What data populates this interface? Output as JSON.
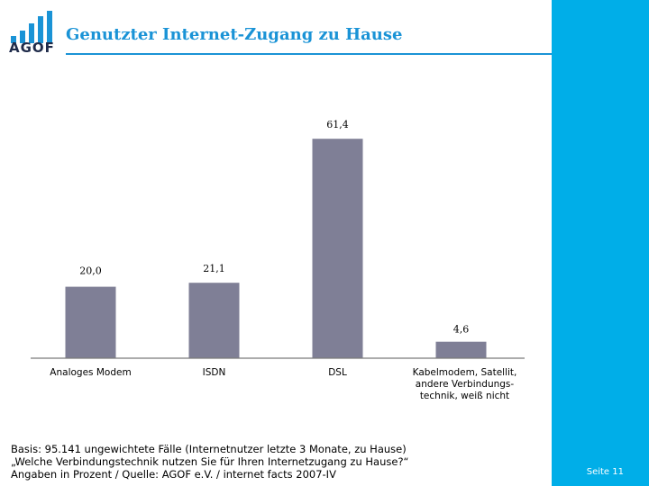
{
  "header": {
    "logo_text": "AGOF",
    "title": "Genutzter Internet-Zugang zu Hause"
  },
  "colors": {
    "accent": "#1a93d6",
    "side_panel": "#00aee8",
    "bar": "#7f7f96"
  },
  "chart_data": {
    "type": "bar",
    "categories": [
      [
        "Analoges Modem"
      ],
      [
        "ISDN"
      ],
      [
        "DSL"
      ],
      [
        "Kabelmodem, Satellit,",
        "andere Verbindungs-",
        "technik, weiß nicht"
      ]
    ],
    "values": [
      20.0,
      21.1,
      61.4,
      4.6
    ],
    "value_labels": [
      "20,0",
      "21,1",
      "61,4",
      "4,6"
    ],
    "ylim": [
      0,
      70
    ],
    "grid": false
  },
  "footnote": {
    "line1": "Basis: 95.141 ungewichtete Fälle (Internetnutzer letzte 3 Monate, zu Hause)",
    "line2": "„Welche Verbindungstechnik nutzen Sie für Ihren Internetzugang zu Hause?“",
    "line3": "Angaben in Prozent / Quelle: AGOF e.V. / internet facts 2007-IV"
  },
  "page_number": "Seite 11"
}
